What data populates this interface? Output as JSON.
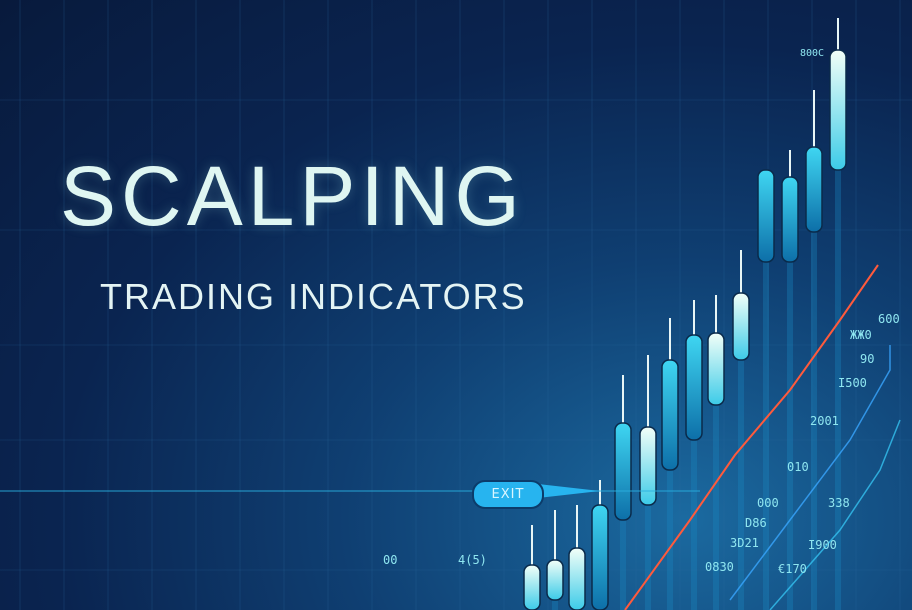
{
  "title": "SCALPING",
  "subtitle": "TRADING INDICATORS",
  "exit_label": "EXIT",
  "colors": {
    "background": "#0a2450",
    "candle": "#2ec9ec",
    "candle_light": "#e0fbf4",
    "trend_line": "#ff5a3c",
    "exit_badge": "#27b4ef"
  },
  "labels": [
    "800C",
    "600",
    "ЖЖ0",
    "90",
    "I500",
    "2001",
    "010",
    "000",
    "D86",
    "3D21",
    "0830",
    "I900",
    "€170",
    "338",
    "4(5)",
    "00"
  ]
}
